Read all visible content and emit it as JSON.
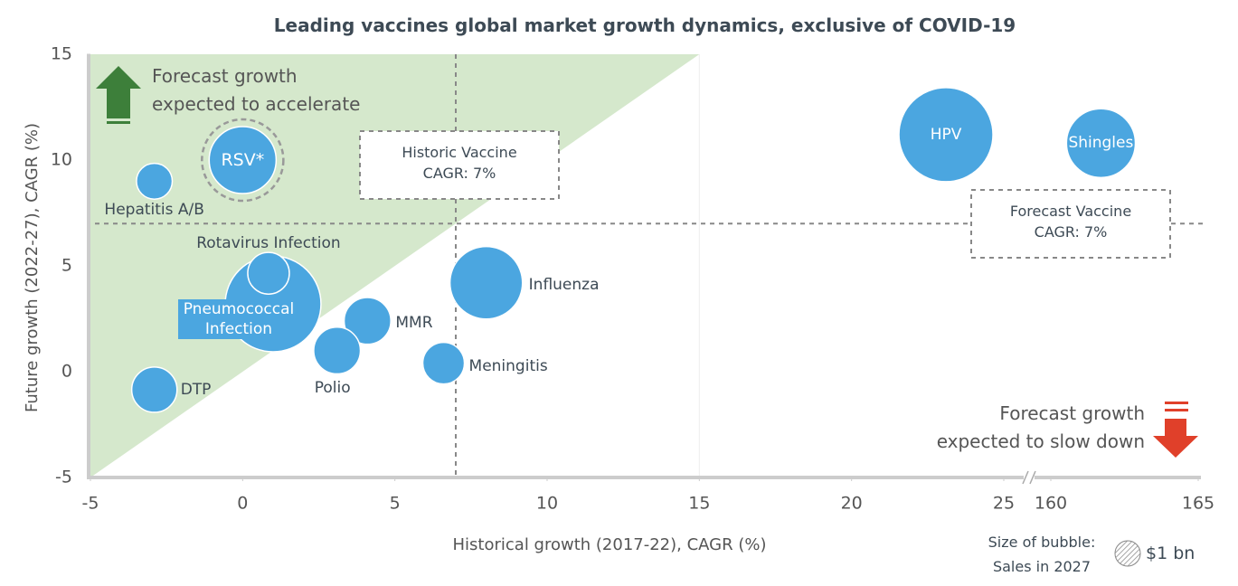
{
  "chart_data": {
    "type": "bubble",
    "title": "Leading vaccines global market growth dynamics, exclusive of COVID-19",
    "x_label": "Historical growth (2017-22), CAGR (%)",
    "y_label": "Future growth (2022-27), CAGR (%)",
    "labels": [
      "Hepatitis A/B",
      "RSV*",
      "Pneumococcal Infection",
      "Rotavirus Infection",
      "DTP",
      "MMR",
      "Polio",
      "Meningitis",
      "Influenza",
      "HPV",
      "Shingles"
    ],
    "x": [
      -2.9,
      0,
      1,
      0.85,
      -2.9,
      4.1,
      3.1,
      6.6,
      8.0,
      23.1,
      161.7
    ],
    "values": [
      9.0,
      10.0,
      3.2,
      4.65,
      -0.85,
      2.4,
      1.0,
      0.4,
      4.2,
      11.2,
      10.8
    ],
    "sizes": [
      2.0,
      7.0,
      14.3,
      2.7,
      3.2,
      3.4,
      3.4,
      2.7,
      8.2,
      13.8,
      7.4
    ],
    "color": "#4ba6e0",
    "xlim": [
      -5,
      165
    ],
    "x_break": [
      25,
      160
    ],
    "xticks": [
      -5,
      0,
      5,
      10,
      15,
      20,
      25,
      160,
      165
    ],
    "ylim": [
      -5,
      15
    ],
    "yticks": [
      -5,
      0,
      5,
      10,
      15
    ],
    "reference_lines": [
      {
        "axis": "x",
        "value": 7,
        "label": [
          "Historic Vaccine",
          "CAGR: 7%"
        ]
      },
      {
        "axis": "y",
        "value": 7,
        "label": [
          "Forecast Vaccine",
          "CAGR: 7%"
        ]
      }
    ],
    "annotations": [
      {
        "lines": [
          "Forecast growth",
          "expected to accelerate"
        ]
      },
      {
        "lines": [
          "Forecast growth",
          "expected to slow down"
        ]
      }
    ],
    "size_legend": {
      "title": [
        "Size of bubble:",
        "Sales in 2027"
      ],
      "value": 1,
      "label": "$1 bn"
    }
  }
}
